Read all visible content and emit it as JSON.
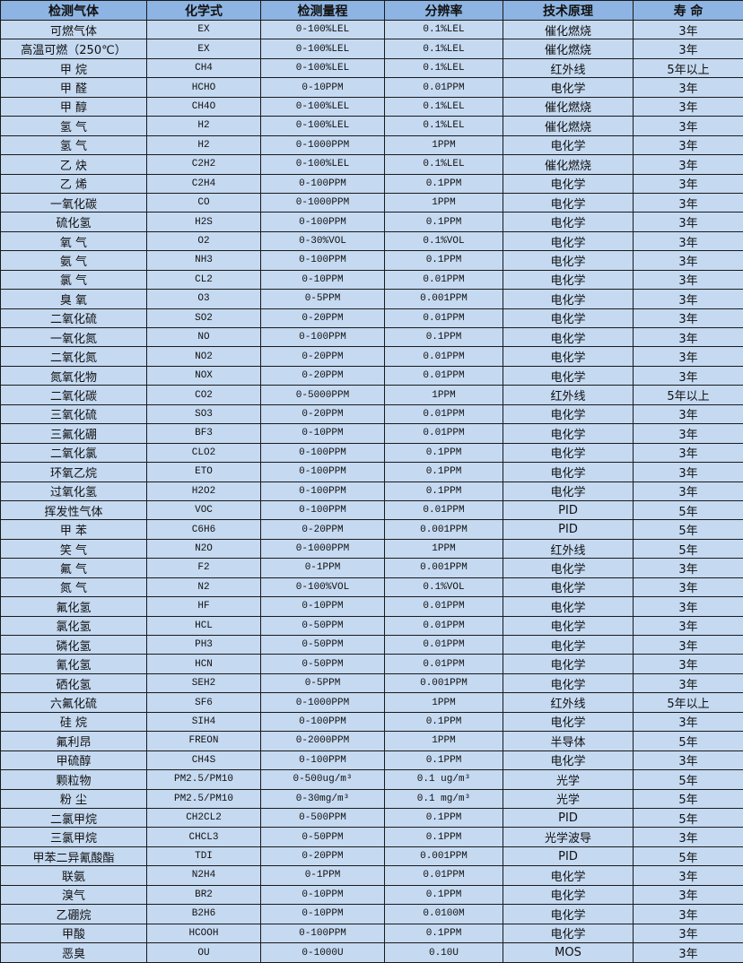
{
  "headers": [
    "检测气体",
    "化学式",
    "检测量程",
    "分辨率",
    "技术原理",
    "寿 命"
  ],
  "rows": [
    [
      "可燃气体",
      "EX",
      "0-100%LEL",
      "0.1%LEL",
      "催化燃烧",
      "3年"
    ],
    [
      "高温可燃（250℃）",
      "EX",
      "0-100%LEL",
      "0.1%LEL",
      "催化燃烧",
      "3年"
    ],
    [
      "甲 烷",
      "CH4",
      "0-100%LEL",
      "0.1%LEL",
      "红外线",
      "5年以上"
    ],
    [
      "甲 醛",
      "HCHO",
      "0-10PPM",
      "0.01PPM",
      "电化学",
      "3年"
    ],
    [
      "甲 醇",
      "CH4O",
      "0-100%LEL",
      "0.1%LEL",
      "催化燃烧",
      "3年"
    ],
    [
      "氢 气",
      "H2",
      "0-100%LEL",
      "0.1%LEL",
      "催化燃烧",
      "3年"
    ],
    [
      "氢 气",
      "H2",
      "0-1000PPM",
      "1PPM",
      "电化学",
      "3年"
    ],
    [
      "乙 炔",
      "C2H2",
      "0-100%LEL",
      "0.1%LEL",
      "催化燃烧",
      "3年"
    ],
    [
      "乙 烯",
      "C2H4",
      "0-100PPM",
      "0.1PPM",
      "电化学",
      "3年"
    ],
    [
      "一氧化碳",
      "CO",
      "0-1000PPM",
      "1PPM",
      "电化学",
      "3年"
    ],
    [
      "硫化氢",
      "H2S",
      "0-100PPM",
      "0.1PPM",
      "电化学",
      "3年"
    ],
    [
      "氧 气",
      "O2",
      "0-30%VOL",
      "0.1%VOL",
      "电化学",
      "3年"
    ],
    [
      "氨 气",
      "NH3",
      "0-100PPM",
      "0.1PPM",
      "电化学",
      "3年"
    ],
    [
      "氯 气",
      "CL2",
      "0-10PPM",
      "0.01PPM",
      "电化学",
      "3年"
    ],
    [
      "臭 氧",
      "O3",
      "0-5PPM",
      "0.001PPM",
      "电化学",
      "3年"
    ],
    [
      "二氧化硫",
      "SO2",
      "0-20PPM",
      "0.01PPM",
      "电化学",
      "3年"
    ],
    [
      "一氧化氮",
      "NO",
      "0-100PPM",
      "0.1PPM",
      "电化学",
      "3年"
    ],
    [
      "二氧化氮",
      "NO2",
      "0-20PPM",
      "0.01PPM",
      "电化学",
      "3年"
    ],
    [
      "氮氧化物",
      "NOX",
      "0-20PPM",
      "0.01PPM",
      "电化学",
      "3年"
    ],
    [
      "二氧化碳",
      "CO2",
      "0-5000PPM",
      "1PPM",
      "红外线",
      "5年以上"
    ],
    [
      "三氧化硫",
      "SO3",
      "0-20PPM",
      "0.01PPM",
      "电化学",
      "3年"
    ],
    [
      "三氟化硼",
      "BF3",
      "0-10PPM",
      "0.01PPM",
      "电化学",
      "3年"
    ],
    [
      "二氧化氯",
      "CLO2",
      "0-100PPM",
      "0.1PPM",
      "电化学",
      "3年"
    ],
    [
      "环氧乙烷",
      "ETO",
      "0-100PPM",
      "0.1PPM",
      "电化学",
      "3年"
    ],
    [
      "过氧化氢",
      "H2O2",
      "0-100PPM",
      "0.1PPM",
      "电化学",
      "3年"
    ],
    [
      "挥发性气体",
      "VOC",
      "0-100PPM",
      "0.01PPM",
      "PID",
      "5年"
    ],
    [
      "甲 苯",
      "C6H6",
      "0-20PPM",
      "0.001PPM",
      "PID",
      "5年"
    ],
    [
      "笑 气",
      "N2O",
      "0-1000PPM",
      "1PPM",
      "红外线",
      "5年"
    ],
    [
      "氟 气",
      "F2",
      "0-1PPM",
      "0.001PPM",
      "电化学",
      "3年"
    ],
    [
      "氮 气",
      "N2",
      "0-100%VOL",
      "0.1%VOL",
      "电化学",
      "3年"
    ],
    [
      "氟化氢",
      "HF",
      "0-10PPM",
      "0.01PPM",
      "电化学",
      "3年"
    ],
    [
      "氯化氢",
      "HCL",
      "0-50PPM",
      "0.01PPM",
      "电化学",
      "3年"
    ],
    [
      "磷化氢",
      "PH3",
      "0-50PPM",
      "0.01PPM",
      "电化学",
      "3年"
    ],
    [
      "氰化氢",
      "HCN",
      "0-50PPM",
      "0.01PPM",
      "电化学",
      "3年"
    ],
    [
      "硒化氢",
      "SEH2",
      "0-5PPM",
      "0.001PPM",
      "电化学",
      "3年"
    ],
    [
      "六氟化硫",
      "SF6",
      "0-1000PPM",
      "1PPM",
      "红外线",
      "5年以上"
    ],
    [
      "硅 烷",
      "SIH4",
      "0-100PPM",
      "0.1PPM",
      "电化学",
      "3年"
    ],
    [
      "氟利昂",
      "FREON",
      "0-2000PPM",
      "1PPM",
      "半导体",
      "5年"
    ],
    [
      "甲硫醇",
      "CH4S",
      "0-100PPM",
      "0.1PPM",
      "电化学",
      "3年"
    ],
    [
      "颗粒物",
      "PM2.5/PM10",
      "0-500ug/m³",
      "0.1 ug/m³",
      "光学",
      "5年"
    ],
    [
      "粉 尘",
      "PM2.5/PM10",
      "0-30mg/m³",
      "0.1 mg/m³",
      "光学",
      "5年"
    ],
    [
      "二氯甲烷",
      "CH2CL2",
      "0-500PPM",
      "0.1PPM",
      "PID",
      "5年"
    ],
    [
      "三氯甲烷",
      "CHCL3",
      "0-50PPM",
      "0.1PPM",
      "光学波导",
      "3年"
    ],
    [
      "甲苯二异氰酸酯",
      "TDI",
      "0-20PPM",
      "0.001PPM",
      "PID",
      "5年"
    ],
    [
      "联氨",
      "N2H4",
      "0-1PPM",
      "0.01PPM",
      "电化学",
      "3年"
    ],
    [
      "溴气",
      "BR2",
      "0-10PPM",
      "0.1PPM",
      "电化学",
      "3年"
    ],
    [
      "乙硼烷",
      "B2H6",
      "0-10PPM",
      "0.0100M",
      "电化学",
      "3年"
    ],
    [
      "甲酸",
      "HCOOH",
      "0-100PPM",
      "0.1PPM",
      "电化学",
      "3年"
    ],
    [
      "恶臭",
      "OU",
      "0-1000U",
      "0.10U",
      "MOS",
      "3年"
    ]
  ],
  "colors": {
    "header_bg": "#8db4e2",
    "row_bg": "#c5d9f1",
    "border": "#1a1a1a"
  }
}
